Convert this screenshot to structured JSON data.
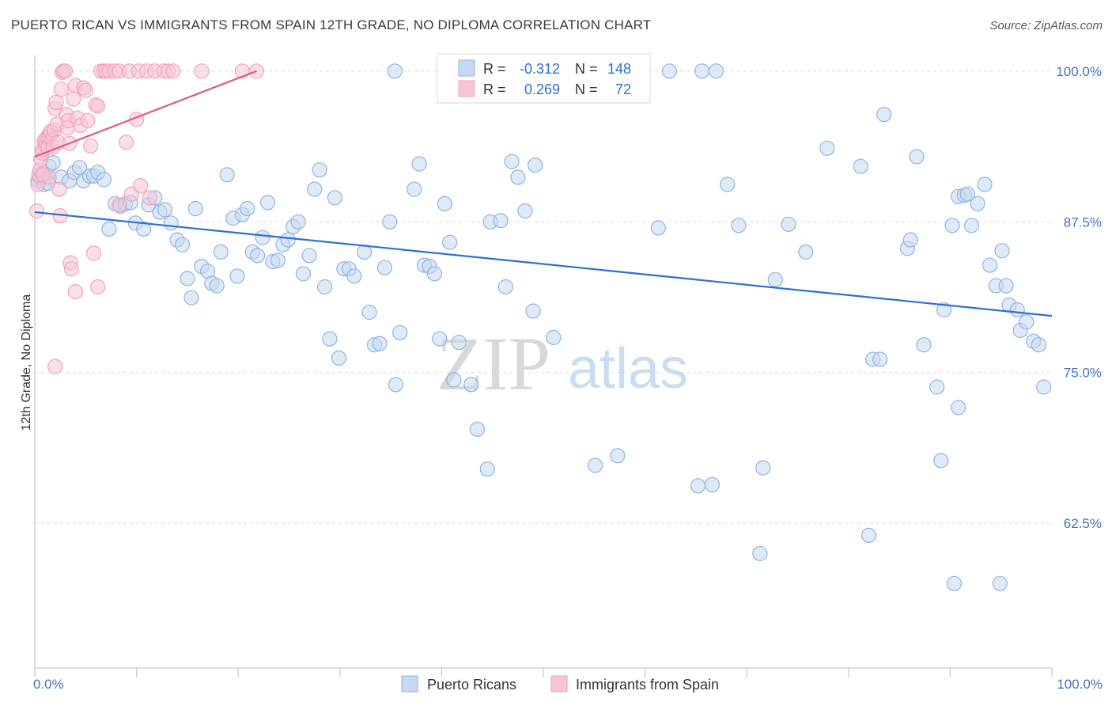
{
  "chart_data": {
    "type": "scatter",
    "title": "PUERTO RICAN VS IMMIGRANTS FROM SPAIN 12TH GRADE, NO DIPLOMA CORRELATION CHART",
    "source": "Source: ZipAtlas.com",
    "xlabel": "",
    "ylabel": "12th Grade, No Diploma",
    "xlim": [
      0,
      100
    ],
    "ylim": [
      50.5,
      101.3
    ],
    "x_tick_labels": [
      "0.0%",
      "100.0%"
    ],
    "y_ticks": [
      62.5,
      75.0,
      87.5,
      100.0
    ],
    "y_tick_labels": [
      "62.5%",
      "75.0%",
      "87.5%",
      "100.0%"
    ],
    "grid": true,
    "watermark": {
      "zip": "ZIP",
      "atlas": "atlas"
    },
    "legend_position": "top-center",
    "stats": [
      {
        "r_label": "R = ",
        "r_value": "-0.312",
        "n_label": "N = ",
        "n_value": "148"
      },
      {
        "r_label": "R = ",
        "r_value": "0.269",
        "n_label": "N = ",
        "n_value": "72"
      }
    ],
    "series": [
      {
        "name": "Puerto Ricans",
        "color": "#8fb4e3",
        "fill": "#c6d9f1",
        "line_color": "#2f6fd1",
        "trend": {
          "x": [
            0,
            100
          ],
          "y": [
            88.3,
            79.7
          ]
        },
        "points": [
          [
            0.3,
            90.9
          ],
          [
            0.5,
            91.2
          ],
          [
            0.7,
            91.5
          ],
          [
            0.9,
            90.6
          ],
          [
            1.1,
            91.3
          ],
          [
            1.3,
            90.7
          ],
          [
            1.4,
            92.1
          ],
          [
            1.8,
            92.4
          ],
          [
            2.6,
            91.2
          ],
          [
            3.4,
            90.9
          ],
          [
            3.9,
            91.6
          ],
          [
            4.4,
            92.0
          ],
          [
            4.8,
            90.9
          ],
          [
            5.4,
            91.3
          ],
          [
            5.8,
            91.3
          ],
          [
            6.2,
            91.6
          ],
          [
            6.8,
            91.0
          ],
          [
            7.3,
            86.9
          ],
          [
            7.9,
            89.0
          ],
          [
            8.4,
            88.8
          ],
          [
            8.9,
            89.0
          ],
          [
            9.4,
            89.1
          ],
          [
            9.9,
            87.4
          ],
          [
            10.7,
            86.9
          ],
          [
            11.2,
            88.9
          ],
          [
            11.8,
            89.5
          ],
          [
            12.3,
            88.3
          ],
          [
            12.8,
            88.5
          ],
          [
            13.4,
            87.4
          ],
          [
            14.0,
            86.0
          ],
          [
            14.5,
            85.6
          ],
          [
            15.0,
            82.8
          ],
          [
            15.4,
            81.2
          ],
          [
            15.8,
            88.6
          ],
          [
            16.4,
            83.8
          ],
          [
            17.0,
            83.4
          ],
          [
            17.4,
            82.4
          ],
          [
            17.9,
            82.2
          ],
          [
            18.3,
            85.0
          ],
          [
            18.9,
            91.4
          ],
          [
            19.5,
            87.8
          ],
          [
            19.9,
            83.0
          ],
          [
            20.4,
            88.1
          ],
          [
            20.9,
            88.6
          ],
          [
            21.4,
            85.0
          ],
          [
            21.9,
            84.7
          ],
          [
            22.4,
            86.2
          ],
          [
            22.9,
            89.1
          ],
          [
            23.4,
            84.2
          ],
          [
            23.9,
            84.3
          ],
          [
            24.4,
            85.6
          ],
          [
            24.9,
            86.0
          ],
          [
            25.4,
            87.1
          ],
          [
            25.9,
            87.5
          ],
          [
            26.4,
            83.2
          ],
          [
            27.0,
            84.7
          ],
          [
            27.5,
            90.2
          ],
          [
            28.0,
            91.8
          ],
          [
            28.5,
            82.1
          ],
          [
            29.0,
            77.8
          ],
          [
            29.5,
            89.5
          ],
          [
            29.9,
            76.2
          ],
          [
            30.4,
            83.6
          ],
          [
            30.9,
            83.6
          ],
          [
            31.4,
            83.0
          ],
          [
            32.4,
            85.0
          ],
          [
            32.9,
            80.0
          ],
          [
            33.4,
            77.3
          ],
          [
            33.9,
            77.4
          ],
          [
            34.4,
            83.7
          ],
          [
            34.9,
            87.5
          ],
          [
            35.5,
            74.0
          ],
          [
            35.9,
            78.3
          ],
          [
            35.4,
            100.0
          ],
          [
            37.3,
            90.2
          ],
          [
            37.8,
            92.3
          ],
          [
            38.3,
            83.9
          ],
          [
            38.8,
            83.8
          ],
          [
            39.3,
            83.2
          ],
          [
            39.8,
            77.8
          ],
          [
            40.3,
            89.0
          ],
          [
            40.8,
            85.8
          ],
          [
            41.2,
            74.4
          ],
          [
            41.7,
            77.5
          ],
          [
            42.9,
            74.0
          ],
          [
            43.5,
            70.3
          ],
          [
            44.5,
            67.0
          ],
          [
            44.8,
            87.5
          ],
          [
            45.8,
            87.6
          ],
          [
            46.3,
            82.1
          ],
          [
            46.9,
            92.5
          ],
          [
            47.5,
            91.2
          ],
          [
            48.2,
            88.4
          ],
          [
            49.0,
            80.1
          ],
          [
            49.2,
            92.2
          ],
          [
            51.0,
            77.9
          ],
          [
            55.1,
            67.3
          ],
          [
            57.3,
            68.1
          ],
          [
            58.3,
            100.0
          ],
          [
            59.0,
            100.0
          ],
          [
            61.3,
            87.0
          ],
          [
            62.4,
            100.0
          ],
          [
            65.2,
            65.6
          ],
          [
            65.6,
            100.0
          ],
          [
            66.6,
            65.7
          ],
          [
            67.0,
            100.0
          ],
          [
            68.1,
            90.6
          ],
          [
            69.2,
            87.2
          ],
          [
            71.3,
            60.0
          ],
          [
            71.6,
            67.1
          ],
          [
            72.8,
            82.7
          ],
          [
            74.1,
            87.3
          ],
          [
            75.8,
            85.0
          ],
          [
            77.9,
            93.6
          ],
          [
            81.2,
            92.1
          ],
          [
            82.0,
            61.5
          ],
          [
            82.4,
            76.1
          ],
          [
            83.1,
            76.1
          ],
          [
            83.5,
            96.4
          ],
          [
            86.7,
            92.9
          ],
          [
            85.8,
            85.3
          ],
          [
            86.1,
            86.0
          ],
          [
            87.4,
            77.3
          ],
          [
            88.7,
            73.8
          ],
          [
            89.1,
            67.7
          ],
          [
            89.4,
            80.2
          ],
          [
            90.4,
            57.5
          ],
          [
            90.8,
            72.1
          ],
          [
            90.2,
            87.2
          ],
          [
            90.8,
            89.6
          ],
          [
            91.4,
            89.7
          ],
          [
            91.7,
            89.8
          ],
          [
            92.1,
            87.2
          ],
          [
            92.7,
            89.0
          ],
          [
            93.4,
            90.6
          ],
          [
            93.9,
            83.9
          ],
          [
            94.5,
            82.2
          ],
          [
            95.1,
            85.1
          ],
          [
            95.5,
            82.2
          ],
          [
            95.8,
            80.6
          ],
          [
            96.6,
            80.2
          ],
          [
            96.9,
            78.5
          ],
          [
            97.5,
            79.2
          ],
          [
            98.2,
            77.6
          ],
          [
            98.7,
            77.3
          ],
          [
            99.2,
            73.8
          ],
          [
            94.9,
            57.5
          ]
        ]
      },
      {
        "name": "Immigrants from Spain",
        "color": "#f2a3bc",
        "fill": "#f7c4d4",
        "line_color": "#e05a87",
        "trend": {
          "x": [
            0,
            21.8
          ],
          "y": [
            92.9,
            100.0
          ]
        },
        "points": [
          [
            0.2,
            88.4
          ],
          [
            0.3,
            90.6
          ],
          [
            0.4,
            91.4
          ],
          [
            0.5,
            91.8
          ],
          [
            0.6,
            92.7
          ],
          [
            0.7,
            93.2
          ],
          [
            0.8,
            93.5
          ],
          [
            0.9,
            94.2
          ],
          [
            1.0,
            94.0
          ],
          [
            1.1,
            93.8
          ],
          [
            1.2,
            94.5
          ],
          [
            1.3,
            93.7
          ],
          [
            1.4,
            94.6
          ],
          [
            1.5,
            94.9
          ],
          [
            1.6,
            95.0
          ],
          [
            1.7,
            94.3
          ],
          [
            1.8,
            93.7
          ],
          [
            1.9,
            95.1
          ],
          [
            2.0,
            96.9
          ],
          [
            2.1,
            97.4
          ],
          [
            2.2,
            95.6
          ],
          [
            2.3,
            94.1
          ],
          [
            2.4,
            90.2
          ],
          [
            2.5,
            88.0
          ],
          [
            2.6,
            98.5
          ],
          [
            2.7,
            99.9
          ],
          [
            2.8,
            100.0
          ],
          [
            3.0,
            100.0
          ],
          [
            3.1,
            96.4
          ],
          [
            3.2,
            95.3
          ],
          [
            3.3,
            95.9
          ],
          [
            3.4,
            94.0
          ],
          [
            3.5,
            84.1
          ],
          [
            3.6,
            83.6
          ],
          [
            3.8,
            97.7
          ],
          [
            4.0,
            98.8
          ],
          [
            4.2,
            96.1
          ],
          [
            4.5,
            95.5
          ],
          [
            4.8,
            98.6
          ],
          [
            5.0,
            98.4
          ],
          [
            5.2,
            95.9
          ],
          [
            5.5,
            93.8
          ],
          [
            5.8,
            84.9
          ],
          [
            6.0,
            97.2
          ],
          [
            6.2,
            97.1
          ],
          [
            6.5,
            100.0
          ],
          [
            6.8,
            100.0
          ],
          [
            7.0,
            100.0
          ],
          [
            7.3,
            100.0
          ],
          [
            7.9,
            100.0
          ],
          [
            8.3,
            100.0
          ],
          [
            9.3,
            100.0
          ],
          [
            10.2,
            100.0
          ],
          [
            11.0,
            100.0
          ],
          [
            11.8,
            100.0
          ],
          [
            12.7,
            100.0
          ],
          [
            13.1,
            100.0
          ],
          [
            13.6,
            100.0
          ],
          [
            16.4,
            100.0
          ],
          [
            20.4,
            100.0
          ],
          [
            21.8,
            100.0
          ],
          [
            8.3,
            88.9
          ],
          [
            9.5,
            89.8
          ],
          [
            10.4,
            90.5
          ],
          [
            11.3,
            89.5
          ],
          [
            9.0,
            94.1
          ],
          [
            10.0,
            96.0
          ],
          [
            4.0,
            81.7
          ],
          [
            6.2,
            82.1
          ],
          [
            2.0,
            75.5
          ],
          [
            1.4,
            91.2
          ],
          [
            0.8,
            91.4
          ]
        ]
      }
    ]
  }
}
